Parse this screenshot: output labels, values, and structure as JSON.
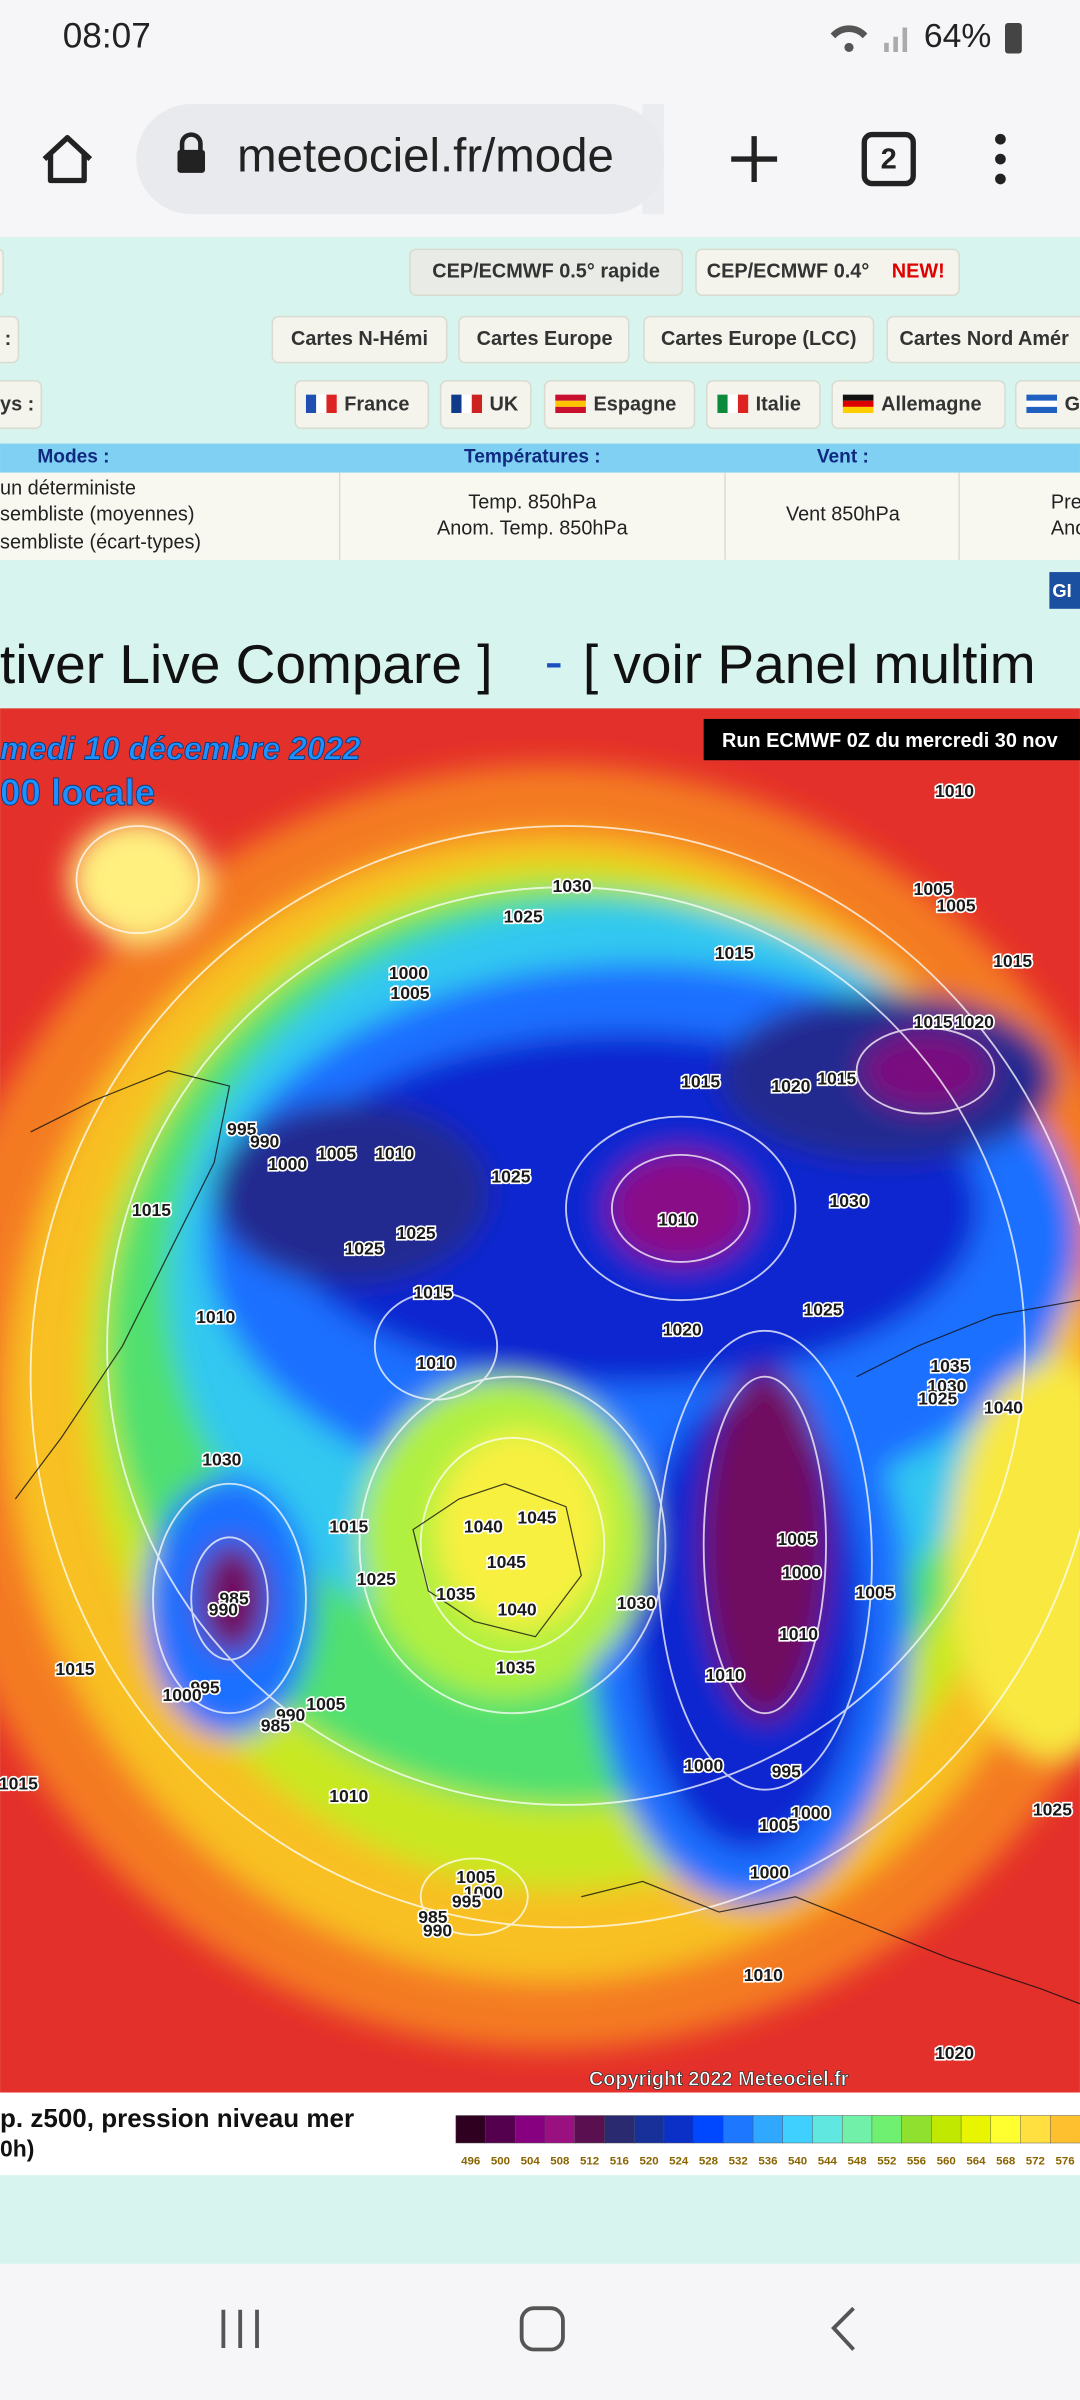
{
  "status_bar": {
    "time": "08:07",
    "battery": "64%"
  },
  "browser": {
    "url": "meteociel.fr/mode",
    "tab_count": "2"
  },
  "model_buttons": [
    "CEP/ECMWF 0.5° rapide",
    "CEP/ECMWF 0.4°"
  ],
  "new_badge": "NEW!",
  "map_buttons_label": ":",
  "map_buttons": [
    "Cartes N-Hémi",
    "Cartes Europe",
    "Cartes Europe (LCC)",
    "Cartes Nord Amér"
  ],
  "country_label": "ys :",
  "countries": [
    "France",
    "UK",
    "Espagne",
    "Italie",
    "Allemagne",
    "G"
  ],
  "modes_table": {
    "headers": [
      "Modes :",
      "Températures :",
      "Vent :"
    ],
    "modes": [
      "un déterministe",
      "sembliste (moyennes)",
      "sembliste (écart-types)"
    ],
    "temperatures": [
      "Temp. 850hPa",
      "Anom. Temp. 850hPa"
    ],
    "wind": [
      "Vent 850hPa"
    ],
    "pressure": [
      "Pre",
      "Ano"
    ]
  },
  "gif_badge": "GI",
  "heading": {
    "left": "tiver Live Compare ]",
    "dash": "-",
    "right": "[ voir Panel multim"
  },
  "map": {
    "date": "medi 10 décembre 2022",
    "time": "00 locale",
    "run": "Run ECMWF 0Z du mercredi 30 nov",
    "copyright": "Copyright 2022 Meteociel.fr",
    "isobar_labels": [
      1010,
      1030,
      1025,
      1005,
      1005,
      1015,
      1015,
      1000,
      1005,
      1015,
      1020,
      1015,
      1020,
      1015,
      995,
      990,
      1005,
      1010,
      1000,
      1025,
      1015,
      1030,
      1010,
      1025,
      1025,
      1015,
      1025,
      1010,
      1020,
      1010,
      1035,
      1030,
      1025,
      1040,
      1030,
      1040,
      1045,
      1015,
      1005,
      1045,
      1000,
      1025,
      1035,
      985,
      990,
      1040,
      1030,
      1005,
      1010,
      1035,
      1015,
      1010,
      995,
      1000,
      1005,
      990,
      985,
      1015,
      1010,
      1000,
      995,
      1000,
      1005,
      1025,
      1005,
      1000,
      995,
      985,
      990,
      1000,
      1010,
      1020
    ]
  },
  "legend": {
    "title": "p. z500, pression niveau mer",
    "subtitle": "0h)",
    "colorbar_ticks": [
      496,
      500,
      504,
      508,
      512,
      516,
      520,
      524,
      528,
      532,
      536,
      540,
      544,
      548,
      552,
      556,
      560,
      564,
      568,
      572,
      576
    ]
  }
}
